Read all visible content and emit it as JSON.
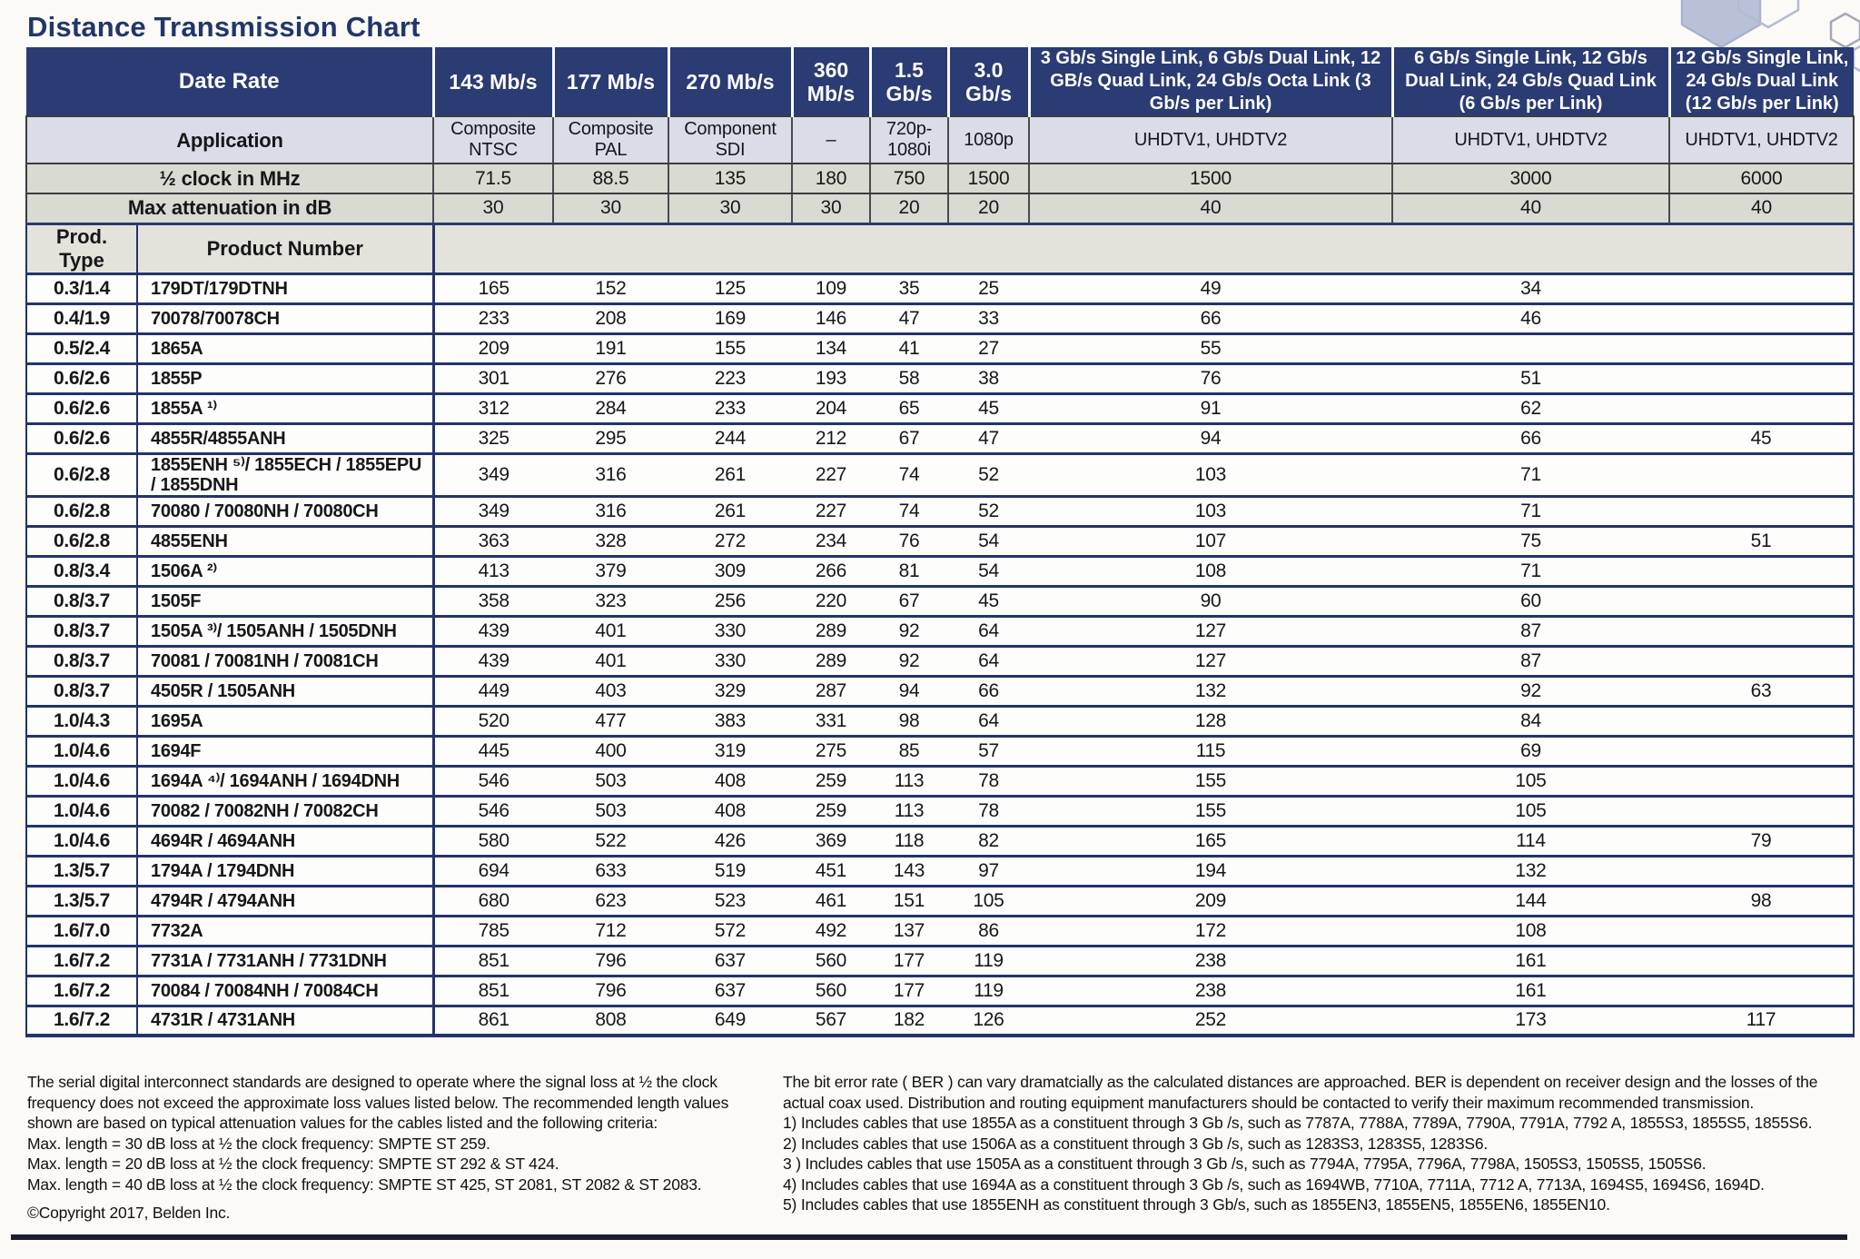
{
  "page": {
    "title": "Distance Transmission Chart",
    "copyright": "©Copyright 2017, Belden Inc."
  },
  "icons": {
    "hexagon_decoration": "⬡"
  },
  "colors": {
    "title_navy": "#22366b",
    "header_navy": "#2b3b73",
    "application_row": "#dadce8",
    "clock_attenuation_row": "#d9dad1",
    "product_header_row": "#e3e3dc",
    "row_separator_navy": "#24336b",
    "bottom_rule": "#1b1c2e",
    "hexagon_fill": "#b9c1d9",
    "hexagon_outline": "#a9b2cf"
  },
  "table": {
    "labels": {
      "date_rate": "Date Rate",
      "application": "Application",
      "half_clock": "½ clock in MHz",
      "max_attenuation": "Max attenuation in dB",
      "prod_type": "Prod. Type",
      "product_number": "Product Number"
    },
    "columns": [
      {
        "rate": "143 Mb/s",
        "application": "Composite NTSC",
        "half_clock": "71.5",
        "max_attenuation": "30"
      },
      {
        "rate": "177 Mb/s",
        "application": "Composite PAL",
        "half_clock": "88.5",
        "max_attenuation": "30"
      },
      {
        "rate": "270 Mb/s",
        "application": "Component SDI",
        "half_clock": "135",
        "max_attenuation": "30"
      },
      {
        "rate": "360 Mb/s",
        "application": "–",
        "half_clock": "180",
        "max_attenuation": "30"
      },
      {
        "rate": "1.5 Gb/s",
        "application": "720p- 1080i",
        "half_clock": "750",
        "max_attenuation": "20"
      },
      {
        "rate": "3.0 Gb/s",
        "application": "1080p",
        "half_clock": "1500",
        "max_attenuation": "20"
      },
      {
        "rate": "3 Gb/s Single Link, 6 Gb/s Dual Link, 12 GB/s Quad Link, 24 Gb/s Octa Link (3 Gb/s per Link)",
        "application": "UHDTV1, UHDTV2",
        "half_clock": "1500",
        "max_attenuation": "40"
      },
      {
        "rate": "6 Gb/s Single Link, 12 Gb/s Dual Link, 24 Gb/s Quad Link (6 Gb/s per Link)",
        "application": "UHDTV1, UHDTV2",
        "half_clock": "3000",
        "max_attenuation": "40"
      },
      {
        "rate": "12 Gb/s Single Link, 24 Gb/s Dual Link (12 Gb/s per Link)",
        "application": "UHDTV1, UHDTV2",
        "half_clock": "6000",
        "max_attenuation": "40"
      }
    ],
    "rows": [
      {
        "type": "0.3/1.4",
        "product": "179DT/179DTNH",
        "values": [
          "165",
          "152",
          "125",
          "109",
          "35",
          "25",
          "49",
          "34",
          ""
        ]
      },
      {
        "type": "0.4/1.9",
        "product": "70078/70078CH",
        "values": [
          "233",
          "208",
          "169",
          "146",
          "47",
          "33",
          "66",
          "46",
          ""
        ]
      },
      {
        "type": "0.5/2.4",
        "product": "1865A",
        "values": [
          "209",
          "191",
          "155",
          "134",
          "41",
          "27",
          "55",
          "",
          ""
        ]
      },
      {
        "type": "0.6/2.6",
        "product": "1855P",
        "values": [
          "301",
          "276",
          "223",
          "193",
          "58",
          "38",
          "76",
          "51",
          ""
        ]
      },
      {
        "type": "0.6/2.6",
        "product": "1855A ¹⁾",
        "values": [
          "312",
          "284",
          "233",
          "204",
          "65",
          "45",
          "91",
          "62",
          ""
        ]
      },
      {
        "type": "0.6/2.6",
        "product": "4855R/4855ANH",
        "values": [
          "325",
          "295",
          "244",
          "212",
          "67",
          "47",
          "94",
          "66",
          "45"
        ]
      },
      {
        "type": "0.6/2.8",
        "product": "1855ENH ⁵⁾/ 1855ECH / 1855EPU / 1855DNH",
        "values": [
          "349",
          "316",
          "261",
          "227",
          "74",
          "52",
          "103",
          "71",
          ""
        ]
      },
      {
        "type": "0.6/2.8",
        "product": "70080 / 70080NH / 70080CH",
        "values": [
          "349",
          "316",
          "261",
          "227",
          "74",
          "52",
          "103",
          "71",
          ""
        ]
      },
      {
        "type": "0.6/2.8",
        "product": "4855ENH",
        "values": [
          "363",
          "328",
          "272",
          "234",
          "76",
          "54",
          "107",
          "75",
          "51"
        ]
      },
      {
        "type": "0.8/3.4",
        "product": "1506A ²⁾",
        "values": [
          "413",
          "379",
          "309",
          "266",
          "81",
          "54",
          "108",
          "71",
          ""
        ]
      },
      {
        "type": "0.8/3.7",
        "product": "1505F",
        "values": [
          "358",
          "323",
          "256",
          "220",
          "67",
          "45",
          "90",
          "60",
          ""
        ]
      },
      {
        "type": "0.8/3.7",
        "product": "1505A ³⁾/ 1505ANH / 1505DNH",
        "values": [
          "439",
          "401",
          "330",
          "289",
          "92",
          "64",
          "127",
          "87",
          ""
        ]
      },
      {
        "type": "0.8/3.7",
        "product": "70081 / 70081NH / 70081CH",
        "values": [
          "439",
          "401",
          "330",
          "289",
          "92",
          "64",
          "127",
          "87",
          ""
        ]
      },
      {
        "type": "0.8/3.7",
        "product": "4505R / 1505ANH",
        "values": [
          "449",
          "403",
          "329",
          "287",
          "94",
          "66",
          "132",
          "92",
          "63"
        ]
      },
      {
        "type": "1.0/4.3",
        "product": "1695A",
        "values": [
          "520",
          "477",
          "383",
          "331",
          "98",
          "64",
          "128",
          "84",
          ""
        ]
      },
      {
        "type": "1.0/4.6",
        "product": "1694F",
        "values": [
          "445",
          "400",
          "319",
          "275",
          "85",
          "57",
          "115",
          "69",
          ""
        ]
      },
      {
        "type": "1.0/4.6",
        "product": "1694A ⁴⁾/ 1694ANH / 1694DNH",
        "values": [
          "546",
          "503",
          "408",
          "259",
          "113",
          "78",
          "155",
          "105",
          ""
        ]
      },
      {
        "type": "1.0/4.6",
        "product": "70082 / 70082NH / 70082CH",
        "values": [
          "546",
          "503",
          "408",
          "259",
          "113",
          "78",
          "155",
          "105",
          ""
        ]
      },
      {
        "type": "1.0/4.6",
        "product": "4694R / 4694ANH",
        "values": [
          "580",
          "522",
          "426",
          "369",
          "118",
          "82",
          "165",
          "114",
          "79"
        ]
      },
      {
        "type": "1.3/5.7",
        "product": "1794A / 1794DNH",
        "values": [
          "694",
          "633",
          "519",
          "451",
          "143",
          "97",
          "194",
          "132",
          ""
        ]
      },
      {
        "type": "1.3/5.7",
        "product": "4794R / 4794ANH",
        "values": [
          "680",
          "623",
          "523",
          "461",
          "151",
          "105",
          "209",
          "144",
          "98"
        ]
      },
      {
        "type": "1.6/7.0",
        "product": "7732A",
        "values": [
          "785",
          "712",
          "572",
          "492",
          "137",
          "86",
          "172",
          "108",
          ""
        ]
      },
      {
        "type": "1.6/7.2",
        "product": "7731A / 7731ANH / 7731DNH",
        "values": [
          "851",
          "796",
          "637",
          "560",
          "177",
          "119",
          "238",
          "161",
          ""
        ]
      },
      {
        "type": "1.6/7.2",
        "product": "70084 / 70084NH / 70084CH",
        "values": [
          "851",
          "796",
          "637",
          "560",
          "177",
          "119",
          "238",
          "161",
          ""
        ]
      },
      {
        "type": "1.6/7.2",
        "product": "4731R / 4731ANH",
        "values": [
          "861",
          "808",
          "649",
          "567",
          "182",
          "126",
          "252",
          "173",
          "117"
        ]
      }
    ]
  },
  "footnotes": {
    "left": {
      "intro": "The serial digital interconnect standards are designed to operate where the signal loss at ½ the clock frequency does not exceed the approximate loss values listed below. The recommended length values shown are based on typical attenuation values for the cables listed and the following criteria:",
      "criteria": [
        "Max. length = 30 dB loss at ½ the clock frequency: SMPTE ST 259.",
        "Max. length = 20 dB loss at ½ the clock frequency: SMPTE ST 292 & ST 424.",
        "Max. length = 40 dB loss at ½ the clock frequency: SMPTE ST 425, ST 2081, ST 2082 & ST 2083."
      ]
    },
    "right": {
      "intro": "The bit error rate ( BER ) can vary dramatcially as the calculated distances are approached. BER is dependent on receiver design and the losses of the actual coax used. Distribution and routing equipment manufacturers should be contacted to verify their maximum recommended transmission.",
      "notes": [
        "1) Includes cables that use 1855A as a constituent through 3 Gb /s, such as 7787A, 7788A, 7789A, 7790A, 7791A, 7792 A, 1855S3, 1855S5, 1855S6.",
        "2) Includes cables that use 1506A as a constituent through 3 Gb /s, such as 1283S3, 1283S5, 1283S6.",
        "3 ) Includes cables that use 1505A as a constituent through 3 Gb /s, such as 7794A, 7795A, 7796A, 7798A, 1505S3, 1505S5, 1505S6.",
        "4) Includes cables that use 1694A as a constituent through 3 Gb /s, such as 1694WB, 7710A, 7711A, 7712 A, 7713A, 1694S5, 1694S6, 1694D.",
        "5) Includes cables that use 1855ENH as constituent through 3 Gb/s, such as 1855EN3, 1855EN5, 1855EN6, 1855EN10."
      ]
    }
  }
}
